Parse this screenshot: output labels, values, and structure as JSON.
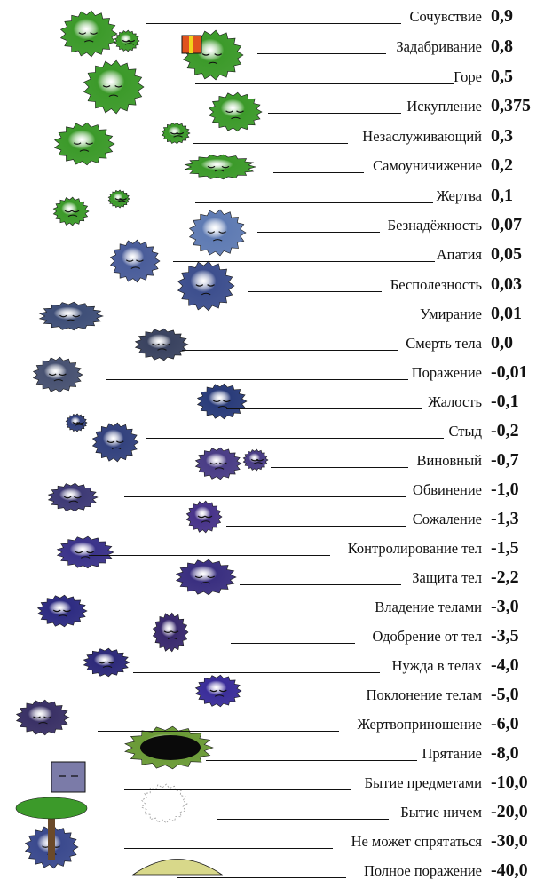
{
  "scale": [
    {
      "label": "Сочувствие",
      "value": "0,9",
      "color": "#3c9a2a"
    },
    {
      "label": "Задабривание",
      "value": "0,8",
      "color": "#3c9a2a"
    },
    {
      "label": "Горе",
      "value": "0,5",
      "color": "#3c9a2a"
    },
    {
      "label": "Искупление",
      "value": "0,375",
      "color": "#3c9a2a"
    },
    {
      "label": "Незаслуживающий",
      "value": "0,3",
      "color": "#3c9a2a"
    },
    {
      "label": "Самоуничижение",
      "value": "0,2",
      "color": "#3c9a2a"
    },
    {
      "label": "Жертва",
      "value": "0,1",
      "color": "#3c9a2a"
    },
    {
      "label": "Безнадёжность",
      "value": "0,07",
      "color": "#5f7bb3"
    },
    {
      "label": "Апатия",
      "value": "0,05",
      "color": "#4a5d9a"
    },
    {
      "label": "Бесполезность",
      "value": "0,03",
      "color": "#3d4f8e"
    },
    {
      "label": "Умирание",
      "value": "0,01",
      "color": "#3f4f78"
    },
    {
      "label": "Смерть тела",
      "value": "0,0",
      "color": "#3a4360"
    },
    {
      "label": "Поражение",
      "value": "-0,01",
      "color": "#485272"
    },
    {
      "label": "Жалость",
      "value": "-0,1",
      "color": "#2a3c7a"
    },
    {
      "label": "Стыд",
      "value": "-0,2",
      "color": "#33427e"
    },
    {
      "label": "Виновный",
      "value": "-0,7",
      "color": "#4a3d86"
    },
    {
      "label": "Обвинение",
      "value": "-1,0",
      "color": "#3e3a76"
    },
    {
      "label": "Сожаление",
      "value": "-1,3",
      "color": "#48348a"
    },
    {
      "label": "Контролирование тел",
      "value": "-1,5",
      "color": "#3b338a"
    },
    {
      "label": "Защита тел",
      "value": "-2,2",
      "color": "#3a2f80"
    },
    {
      "label": "Владение телами",
      "value": "-3,0",
      "color": "#2e2c82"
    },
    {
      "label": "Одобрение от тел",
      "value": "-3,5",
      "color": "#3a2a6e"
    },
    {
      "label": "Нужда в телах",
      "value": "-4,0",
      "color": "#2e2a7a"
    },
    {
      "label": "Поклонение телам",
      "value": "-5,0",
      "color": "#3b2e9a"
    },
    {
      "label": "Жертвоприношение",
      "value": "-6,0",
      "color": "#3a3166"
    },
    {
      "label": "Прятание",
      "value": "-8,0",
      "color": "#6a9a36"
    },
    {
      "label": "Бытие предметами",
      "value": "-10,0",
      "color": "#6f6f9a"
    },
    {
      "label": "Бытие ничем",
      "value": "-20,0",
      "color": "#cccccc"
    },
    {
      "label": "Не может спрятаться",
      "value": "-30,0",
      "color": "#3b4a8e"
    },
    {
      "label": "Полное поражение",
      "value": "-40,0",
      "color": "#c9c97a"
    }
  ]
}
